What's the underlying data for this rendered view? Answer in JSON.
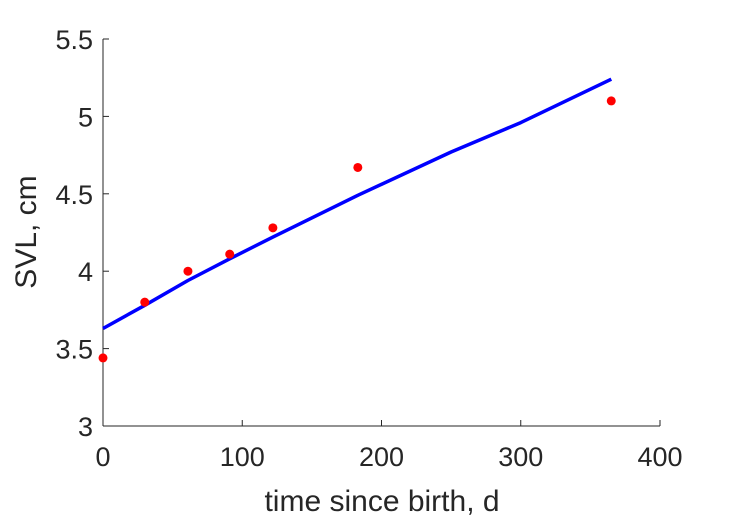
{
  "chart_data": {
    "type": "scatter",
    "title": "",
    "xlabel": "time since birth, d",
    "ylabel": "SVL, cm",
    "xlim": [
      0,
      400
    ],
    "ylim": [
      3,
      5.5
    ],
    "xticks": [
      0,
      100,
      200,
      300,
      400
    ],
    "xtick_labels": [
      "0",
      "100",
      "200",
      "300",
      "400"
    ],
    "yticks": [
      3,
      3.5,
      4,
      4.5,
      5,
      5.5
    ],
    "ytick_labels": [
      "3",
      "3.5",
      "4",
      "4.5",
      "5",
      "5.5"
    ],
    "grid": false,
    "legend": "none",
    "series": [
      {
        "kind": "points",
        "color": "#ff0000",
        "x": [
          0,
          30,
          61,
          91,
          122,
          183,
          365
        ],
        "y": [
          3.44,
          3.8,
          4.0,
          4.11,
          4.28,
          4.67,
          5.1
        ]
      },
      {
        "kind": "line",
        "color": "#0000ff",
        "x": [
          0,
          30,
          61,
          91,
          122,
          183,
          250,
          300,
          365
        ],
        "y": [
          3.63,
          3.78,
          3.94,
          4.08,
          4.22,
          4.49,
          4.77,
          4.96,
          5.24
        ]
      }
    ]
  }
}
